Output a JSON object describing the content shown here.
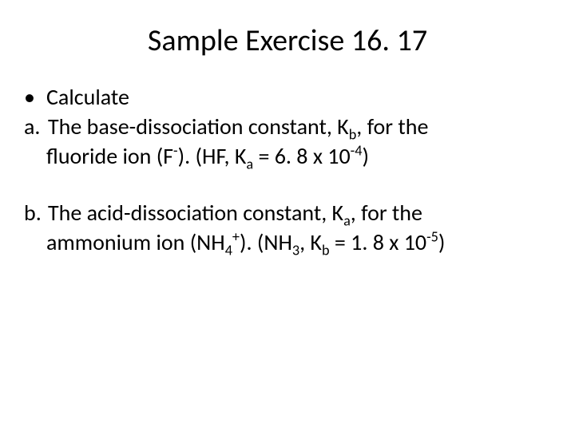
{
  "title_fontsize": 38,
  "body_fontsize": 28,
  "background_color": "#ffffff",
  "text_color": "#000000",
  "title": "Sample Exercise 16. 17",
  "bullet_label": "Calculate",
  "item_a_marker": "a.",
  "item_a_line1_pre": "The base-dissociation constant, K",
  "item_a_line1_sub": "b",
  "item_a_line1_post": ", for the",
  "item_a_line2_p1": "fluoride ion (F",
  "item_a_line2_sup1": "-",
  "item_a_line2_p2": "). (HF, K",
  "item_a_line2_sub1": "a",
  "item_a_line2_p3": " = 6. 8 x 10",
  "item_a_line2_sup2": "-4",
  "item_a_line2_p4": ")",
  "item_b_marker": "b.",
  "item_b_line1_pre": "The acid-dissociation constant, K",
  "item_b_line1_sub": "a",
  "item_b_line1_post": ", for the",
  "item_b_line2_p1": "ammonium ion (NH",
  "item_b_line2_sub1": "4",
  "item_b_line2_sup1": "+",
  "item_b_line2_p2": "). (NH",
  "item_b_line2_sub2": "3",
  "item_b_line2_p3": ", K",
  "item_b_line2_sub3": "b",
  "item_b_line2_p4": " = 1. 8 x 10",
  "item_b_line2_sup2": "-5",
  "item_b_line2_p5": ")"
}
